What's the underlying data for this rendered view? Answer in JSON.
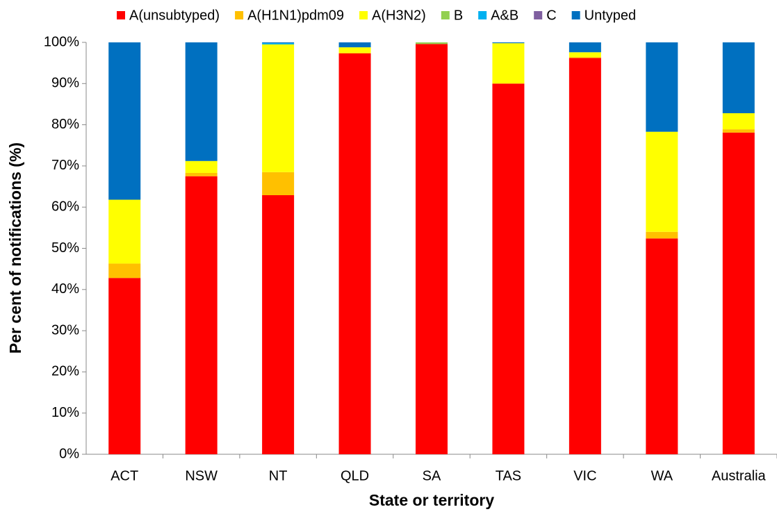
{
  "chart_data": {
    "type": "stacked-bar",
    "x_label": "State or territory",
    "y_label": "Per cent of notifications (%)",
    "categories": [
      "ACT",
      "NSW",
      "NT",
      "QLD",
      "SA",
      "TAS",
      "VIC",
      "WA",
      "Australia"
    ],
    "series": [
      {
        "name": "A(unsubtyped)",
        "color": "#ff0000",
        "values": [
          42.8,
          67.5,
          62.9,
          97.3,
          99.6,
          90.0,
          96.2,
          52.4,
          78.1
        ]
      },
      {
        "name": "A(H1N1)pdm09",
        "color": "#ffc000",
        "values": [
          3.5,
          0.8,
          5.6,
          0.2,
          0,
          0,
          0.2,
          1.6,
          0.8
        ]
      },
      {
        "name": "A(H3N2)",
        "color": "#ffff00",
        "values": [
          15.5,
          2.9,
          31.0,
          1.3,
          0,
          9.8,
          1.2,
          24.3,
          3.9
        ]
      },
      {
        "name": "B",
        "color": "#92d050",
        "values": [
          0,
          0,
          0,
          0,
          0.4,
          0,
          0,
          0,
          0
        ]
      },
      {
        "name": "A&B",
        "color": "#00b0f0",
        "values": [
          0,
          0,
          0.3,
          0,
          0,
          0,
          0,
          0,
          0
        ]
      },
      {
        "name": "C",
        "color": "#7f5fa0",
        "values": [
          0,
          0,
          0,
          0,
          0,
          0,
          0,
          0,
          0
        ]
      },
      {
        "name": "Untyped",
        "color": "#0070c0",
        "values": [
          38.2,
          28.8,
          0.2,
          1.2,
          0,
          0.2,
          2.4,
          21.7,
          17.2
        ]
      }
    ],
    "ylim": [
      0,
      100
    ],
    "yticks": [
      {
        "value": 0,
        "label": "0%"
      },
      {
        "value": 10,
        "label": "10%"
      },
      {
        "value": 20,
        "label": "20%"
      },
      {
        "value": 30,
        "label": "30%"
      },
      {
        "value": 40,
        "label": "40%"
      },
      {
        "value": 50,
        "label": "50%"
      },
      {
        "value": 60,
        "label": "60%"
      },
      {
        "value": 70,
        "label": "70%"
      },
      {
        "value": 80,
        "label": "80%"
      },
      {
        "value": 90,
        "label": "90%"
      },
      {
        "value": 100,
        "label": "100%"
      }
    ],
    "legend": "top"
  }
}
